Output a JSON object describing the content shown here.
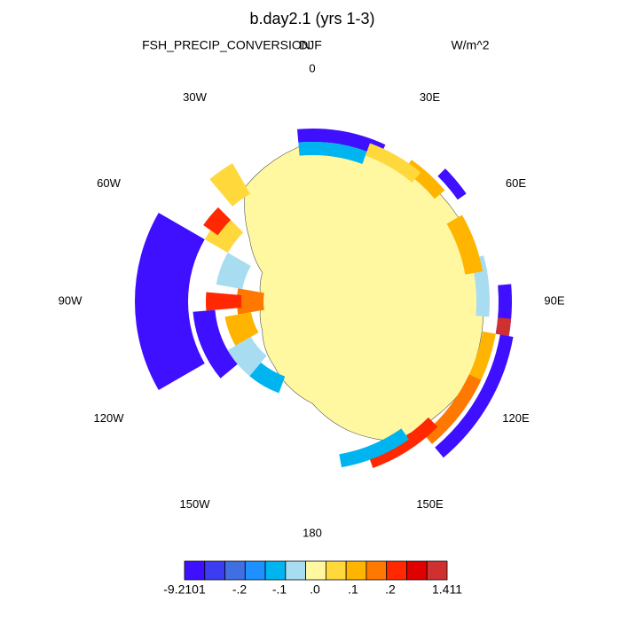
{
  "title": "b.day2.1 (yrs 1-3)",
  "left_string": "FSH_PRECIP_CONVERSION",
  "center_string": "DJF",
  "right_string": "W/m^2",
  "longitude_labels": [
    "0",
    "30E",
    "60E",
    "90E",
    "120E",
    "150E",
    "180",
    "150W",
    "120W",
    "90W",
    "60W",
    "30W"
  ],
  "colorbar": {
    "colors": [
      "#3f0fff",
      "#3c3cf0",
      "#3f6fe0",
      "#1e90ff",
      "#00b4f0",
      "#a8dcf0",
      "#fff8a0",
      "#ffd83c",
      "#ffb400",
      "#ff7800",
      "#ff2800",
      "#e00000",
      "#d03030"
    ],
    "labels": [
      "-9.2101",
      "-.2",
      "-.1",
      ".0",
      ".1",
      ".2",
      "1.411"
    ]
  }
}
